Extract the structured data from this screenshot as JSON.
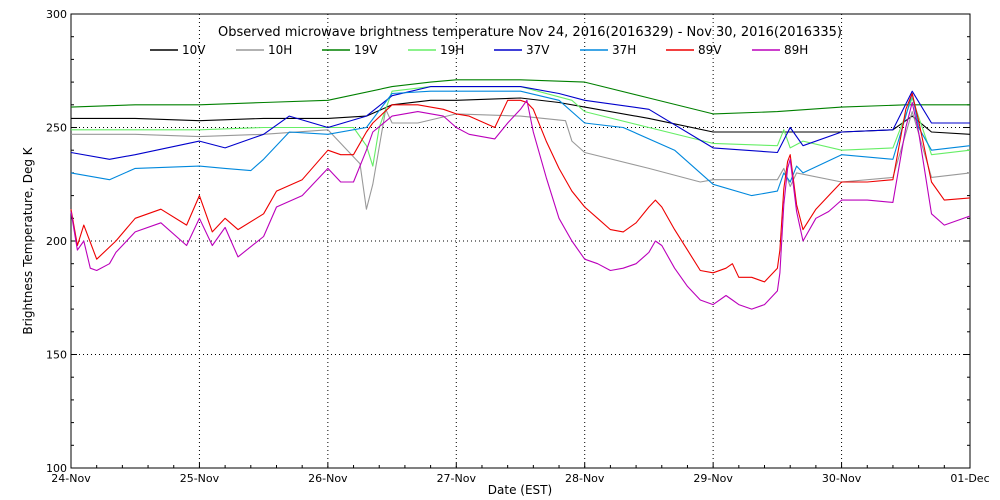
{
  "chart_data": {
    "type": "line",
    "title": "Observed microwave brightness temperature Nov 24, 2016(2016329) - Nov 30, 2016(2016335)",
    "xlabel": "Date (EST)",
    "ylabel": "Brightness Temperature, Deg K",
    "xlim": [
      0,
      7
    ],
    "ylim": [
      100,
      300
    ],
    "grid": true,
    "legend": "top",
    "x_ticks": [
      {
        "x": 0,
        "label": "24-Nov"
      },
      {
        "x": 1,
        "label": "25-Nov"
      },
      {
        "x": 2,
        "label": "26-Nov"
      },
      {
        "x": 3,
        "label": "27-Nov"
      },
      {
        "x": 4,
        "label": "28-Nov"
      },
      {
        "x": 5,
        "label": "29-Nov"
      },
      {
        "x": 6,
        "label": "30-Nov"
      },
      {
        "x": 7,
        "label": "01-Dec"
      }
    ],
    "y_ticks": [
      100,
      150,
      200,
      250,
      300
    ],
    "series": [
      {
        "name": "10V",
        "color": "#000000",
        "x": [
          0,
          0.5,
          1,
          1.5,
          2,
          2.3,
          2.5,
          2.8,
          3,
          3.5,
          3.8,
          4,
          4.5,
          5,
          5.5,
          5.85,
          6,
          6.4,
          6.55,
          6.7,
          7
        ],
        "y": [
          254,
          254,
          253,
          254,
          254,
          255,
          260,
          262,
          262,
          263,
          261,
          259,
          254,
          248,
          248,
          248,
          248,
          249,
          255,
          248,
          247
        ]
      },
      {
        "name": "10H",
        "color": "#999999",
        "x": [
          0,
          0.5,
          1,
          1.5,
          2,
          2.25,
          2.3,
          2.35,
          2.45,
          2.5,
          2.7,
          3,
          3.5,
          3.85,
          3.9,
          4,
          4.5,
          4.9,
          5,
          5.5,
          5.55,
          5.6,
          5.65,
          6,
          6.4,
          6.55,
          6.7,
          7
        ],
        "y": [
          247,
          247,
          246,
          247,
          249,
          234,
          214,
          225,
          258,
          252,
          252,
          256,
          255,
          253,
          244,
          239,
          232,
          226,
          227,
          227,
          232,
          224,
          230,
          226,
          228,
          257,
          228,
          230
        ]
      },
      {
        "name": "19V",
        "color": "#008000",
        "x": [
          0,
          0.5,
          1,
          1.5,
          2,
          2.5,
          2.8,
          3,
          3.5,
          4,
          4.5,
          5,
          5.5,
          6,
          6.5,
          7
        ],
        "y": [
          259,
          260,
          260,
          261,
          262,
          268,
          270,
          271,
          271,
          270,
          263,
          256,
          257,
          259,
          260,
          260
        ]
      },
      {
        "name": "19H",
        "color": "#66ee66",
        "x": [
          0,
          0.5,
          1,
          1.5,
          2,
          2.2,
          2.3,
          2.35,
          2.4,
          2.5,
          2.8,
          3,
          3.5,
          3.9,
          4,
          4.5,
          5,
          5.5,
          5.55,
          5.6,
          5.7,
          6,
          6.4,
          6.55,
          6.7,
          7
        ],
        "y": [
          249,
          249,
          249,
          250,
          250,
          250,
          242,
          233,
          250,
          266,
          268,
          268,
          268,
          262,
          257,
          250,
          243,
          242,
          249,
          241,
          244,
          240,
          241,
          263,
          238,
          240
        ]
      },
      {
        "name": "37V",
        "color": "#0000cc",
        "x": [
          0,
          0.3,
          0.5,
          1,
          1.2,
          1.5,
          1.7,
          2,
          2.3,
          2.5,
          2.8,
          3,
          3.5,
          3.8,
          4,
          4.5,
          5,
          5.5,
          5.6,
          5.7,
          6,
          6.4,
          6.55,
          6.7,
          7
        ],
        "y": [
          239,
          236,
          238,
          244,
          241,
          247,
          255,
          250,
          255,
          264,
          268,
          268,
          268,
          265,
          262,
          258,
          241,
          239,
          250,
          242,
          248,
          249,
          266,
          252,
          252
        ]
      },
      {
        "name": "37H",
        "color": "#0088dd",
        "x": [
          0,
          0.3,
          0.5,
          1,
          1.2,
          1.4,
          1.5,
          1.7,
          2,
          2.3,
          2.5,
          2.8,
          3,
          3.5,
          3.8,
          4,
          4.3,
          4.7,
          5,
          5.3,
          5.5,
          5.55,
          5.6,
          5.65,
          5.7,
          6,
          6.4,
          6.5,
          6.55,
          6.6,
          6.7,
          7
        ],
        "y": [
          230,
          227,
          232,
          233,
          232,
          231,
          236,
          248,
          247,
          250,
          265,
          266,
          266,
          266,
          262,
          252,
          250,
          240,
          225,
          220,
          222,
          230,
          226,
          233,
          230,
          238,
          236,
          255,
          265,
          250,
          240,
          242
        ]
      },
      {
        "name": "89V",
        "color": "#ee0000",
        "x": [
          0,
          0.05,
          0.1,
          0.2,
          0.35,
          0.5,
          0.7,
          0.9,
          1,
          1.1,
          1.2,
          1.3,
          1.5,
          1.6,
          1.8,
          2,
          2.1,
          2.2,
          2.3,
          2.35,
          2.5,
          2.7,
          2.9,
          3,
          3.1,
          3.3,
          3.4,
          3.5,
          3.55,
          3.6,
          3.7,
          3.8,
          3.9,
          4,
          4.1,
          4.2,
          4.3,
          4.4,
          4.5,
          4.55,
          4.6,
          4.7,
          4.8,
          4.9,
          5,
          5.1,
          5.15,
          5.2,
          5.3,
          5.4,
          5.5,
          5.52,
          5.55,
          5.58,
          5.6,
          5.65,
          5.7,
          5.8,
          5.9,
          6,
          6.2,
          6.4,
          6.5,
          6.55,
          6.6,
          6.7,
          6.8,
          7
        ],
        "y": [
          214,
          198,
          207,
          192,
          200,
          210,
          214,
          207,
          220,
          204,
          210,
          205,
          212,
          222,
          227,
          240,
          238,
          238,
          248,
          252,
          260,
          260,
          258,
          256,
          255,
          250,
          262,
          262,
          261,
          258,
          244,
          232,
          222,
          215,
          210,
          205,
          204,
          208,
          215,
          218,
          215,
          205,
          196,
          187,
          186,
          188,
          190,
          184,
          184,
          182,
          188,
          196,
          223,
          235,
          238,
          216,
          205,
          214,
          220,
          226,
          226,
          227,
          258,
          265,
          253,
          226,
          218,
          219
        ]
      },
      {
        "name": "89H",
        "color": "#bb00bb",
        "x": [
          0,
          0.05,
          0.1,
          0.15,
          0.2,
          0.3,
          0.35,
          0.5,
          0.7,
          0.9,
          1,
          1.1,
          1.2,
          1.3,
          1.5,
          1.6,
          1.8,
          2,
          2.1,
          2.2,
          2.3,
          2.35,
          2.5,
          2.7,
          2.9,
          3,
          3.1,
          3.3,
          3.4,
          3.5,
          3.55,
          3.6,
          3.7,
          3.8,
          3.9,
          4,
          4.1,
          4.2,
          4.3,
          4.4,
          4.5,
          4.55,
          4.6,
          4.7,
          4.8,
          4.9,
          5,
          5.1,
          5.15,
          5.2,
          5.3,
          5.4,
          5.5,
          5.52,
          5.55,
          5.58,
          5.6,
          5.65,
          5.7,
          5.8,
          5.9,
          6,
          6.2,
          6.4,
          6.5,
          6.55,
          6.6,
          6.7,
          6.8,
          7
        ],
        "y": [
          213,
          196,
          200,
          188,
          187,
          190,
          195,
          204,
          208,
          198,
          210,
          198,
          206,
          193,
          202,
          215,
          220,
          232,
          226,
          226,
          240,
          248,
          255,
          257,
          255,
          250,
          247,
          245,
          252,
          258,
          262,
          248,
          228,
          210,
          200,
          192,
          190,
          187,
          188,
          190,
          195,
          200,
          198,
          188,
          180,
          174,
          172,
          176,
          174,
          172,
          170,
          172,
          178,
          186,
          216,
          232,
          236,
          213,
          200,
          210,
          213,
          218,
          218,
          217,
          250,
          261,
          248,
          212,
          207,
          211
        ]
      }
    ]
  }
}
